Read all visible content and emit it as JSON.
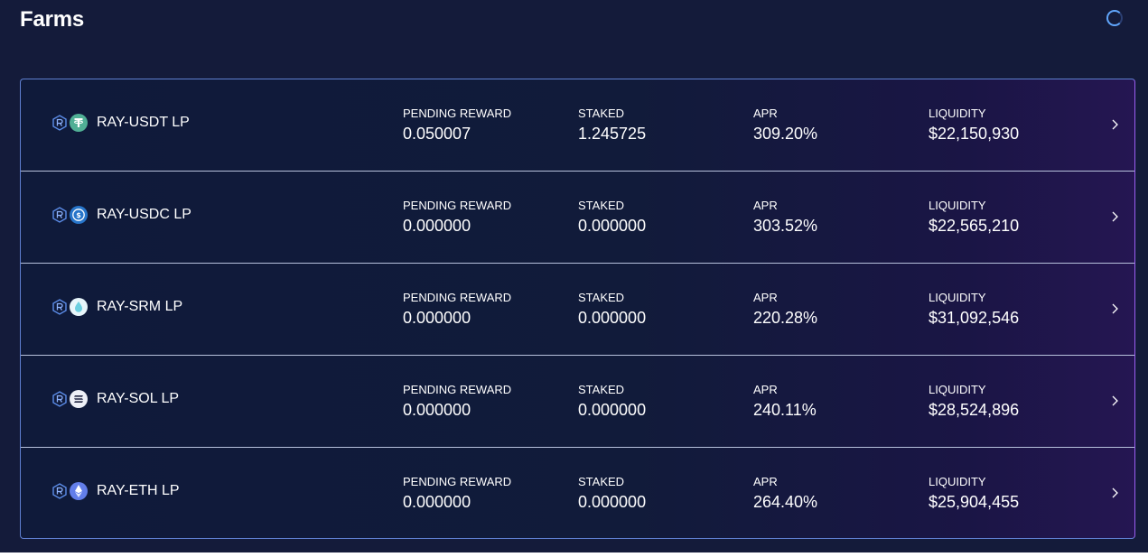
{
  "page": {
    "title": "Farms",
    "status_icon": "loading-spinner-icon"
  },
  "colors": {
    "background": "#141b3a",
    "card_border": "#5f7fd0",
    "accent": "#60a5fa",
    "text": "#ffffff"
  },
  "farms": [
    {
      "name": "RAY-USDT LP",
      "token_icon": "usdt-icon",
      "pending_reward_label": "PENDING REWARD",
      "pending_reward": "0.050007",
      "staked_label": "STAKED",
      "staked": "1.245725",
      "apr_label": "APR",
      "apr": "309.20%",
      "liquidity_label": "LIQUIDITY",
      "liquidity": "$22,150,930"
    },
    {
      "name": "RAY-USDC LP",
      "token_icon": "usdc-icon",
      "pending_reward_label": "PENDING REWARD",
      "pending_reward": "0.000000",
      "staked_label": "STAKED",
      "staked": "0.000000",
      "apr_label": "APR",
      "apr": "303.52%",
      "liquidity_label": "LIQUIDITY",
      "liquidity": "$22,565,210"
    },
    {
      "name": "RAY-SRM LP",
      "token_icon": "srm-icon",
      "pending_reward_label": "PENDING REWARD",
      "pending_reward": "0.000000",
      "staked_label": "STAKED",
      "staked": "0.000000",
      "apr_label": "APR",
      "apr": "220.28%",
      "liquidity_label": "LIQUIDITY",
      "liquidity": "$31,092,546"
    },
    {
      "name": "RAY-SOL LP",
      "token_icon": "sol-icon",
      "pending_reward_label": "PENDING REWARD",
      "pending_reward": "0.000000",
      "staked_label": "STAKED",
      "staked": "0.000000",
      "apr_label": "APR",
      "apr": "240.11%",
      "liquidity_label": "LIQUIDITY",
      "liquidity": "$28,524,896"
    },
    {
      "name": "RAY-ETH LP",
      "token_icon": "eth-icon",
      "pending_reward_label": "PENDING REWARD",
      "pending_reward": "0.000000",
      "staked_label": "STAKED",
      "staked": "0.000000",
      "apr_label": "APR",
      "apr": "264.40%",
      "liquidity_label": "LIQUIDITY",
      "liquidity": "$25,904,455"
    }
  ]
}
